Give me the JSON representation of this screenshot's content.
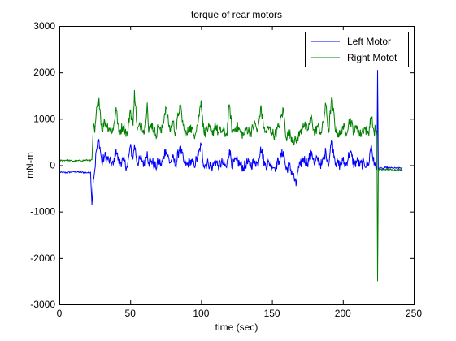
{
  "chart_data": {
    "type": "line",
    "title": "torque of rear motors",
    "xlabel": "time (sec)",
    "ylabel": "mN-m",
    "xlim": [
      0,
      250
    ],
    "ylim": [
      -3000,
      3000
    ],
    "xticks": [
      0,
      50,
      100,
      150,
      200,
      250
    ],
    "yticks": [
      -3000,
      -2000,
      -1000,
      0,
      1000,
      2000,
      3000
    ],
    "grid": false,
    "legend_placement": "top-right",
    "series": [
      {
        "name": "Left Motor",
        "color": "#0000ff",
        "x": [
          0,
          5,
          10,
          15,
          20,
          22,
          23,
          24,
          25,
          26,
          28,
          30,
          32,
          35,
          38,
          40,
          42,
          45,
          48,
          50,
          52,
          53,
          55,
          58,
          60,
          62,
          63,
          65,
          68,
          70,
          72,
          75,
          78,
          80,
          82,
          85,
          88,
          90,
          92,
          95,
          98,
          100,
          102,
          105,
          108,
          110,
          112,
          115,
          118,
          120,
          122,
          125,
          128,
          130,
          132,
          135,
          138,
          140,
          142,
          145,
          148,
          150,
          152,
          155,
          158,
          160,
          162,
          165,
          167,
          168,
          170,
          172,
          175,
          178,
          180,
          182,
          185,
          188,
          190,
          192,
          195,
          198,
          200,
          202,
          205,
          208,
          210,
          212,
          215,
          218,
          220,
          222,
          223,
          224,
          224.5,
          225,
          226,
          228,
          230,
          235,
          240,
          242
        ],
        "y": [
          -150,
          -160,
          -140,
          -150,
          -160,
          -150,
          -850,
          -300,
          -100,
          300,
          550,
          50,
          200,
          100,
          0,
          350,
          50,
          100,
          -50,
          400,
          150,
          450,
          50,
          150,
          0,
          300,
          50,
          100,
          -50,
          100,
          0,
          350,
          50,
          150,
          0,
          400,
          50,
          0,
          100,
          0,
          200,
          450,
          0,
          50,
          -50,
          100,
          0,
          50,
          -50,
          350,
          0,
          100,
          0,
          -50,
          50,
          0,
          100,
          0,
          400,
          0,
          50,
          0,
          -50,
          100,
          300,
          -100,
          0,
          -200,
          -450,
          -150,
          0,
          150,
          50,
          300,
          0,
          150,
          0,
          300,
          0,
          550,
          50,
          0,
          100,
          0,
          300,
          0,
          100,
          0,
          50,
          0,
          450,
          0,
          50,
          -100,
          2050,
          -100,
          -50,
          -80,
          -50,
          -60,
          -60,
          -60
        ]
      },
      {
        "name": "Right Motot",
        "color": "#008000",
        "x": [
          0,
          5,
          10,
          15,
          20,
          22,
          23,
          24,
          25,
          26,
          28,
          30,
          32,
          35,
          38,
          40,
          42,
          45,
          48,
          50,
          52,
          53,
          55,
          58,
          60,
          62,
          63,
          65,
          68,
          70,
          72,
          75,
          78,
          80,
          82,
          85,
          88,
          90,
          92,
          95,
          98,
          100,
          102,
          105,
          108,
          110,
          112,
          115,
          118,
          120,
          122,
          125,
          128,
          130,
          132,
          135,
          138,
          140,
          142,
          145,
          148,
          150,
          152,
          155,
          158,
          160,
          162,
          165,
          167,
          168,
          170,
          172,
          175,
          178,
          180,
          182,
          185,
          188,
          190,
          192,
          195,
          198,
          200,
          202,
          205,
          208,
          210,
          212,
          215,
          218,
          220,
          222,
          223,
          224,
          224.5,
          225,
          226,
          228,
          230,
          235,
          240,
          242
        ],
        "y": [
          100,
          110,
          90,
          100,
          110,
          100,
          120,
          850,
          700,
          1100,
          1450,
          750,
          950,
          800,
          750,
          1250,
          700,
          850,
          650,
          1200,
          850,
          1620,
          750,
          900,
          700,
          1350,
          700,
          900,
          650,
          850,
          700,
          1250,
          750,
          950,
          700,
          1300,
          750,
          650,
          850,
          650,
          950,
          1400,
          700,
          800,
          650,
          900,
          700,
          750,
          650,
          1300,
          700,
          850,
          700,
          650,
          800,
          700,
          900,
          700,
          1250,
          700,
          800,
          700,
          650,
          850,
          1200,
          600,
          700,
          550,
          500,
          600,
          700,
          900,
          750,
          1050,
          650,
          850,
          700,
          1300,
          700,
          1450,
          750,
          650,
          850,
          700,
          1000,
          700,
          850,
          650,
          800,
          700,
          1050,
          700,
          800,
          650,
          -2500,
          -100,
          -80,
          -100,
          -90,
          -100,
          -100,
          -100
        ]
      }
    ]
  }
}
